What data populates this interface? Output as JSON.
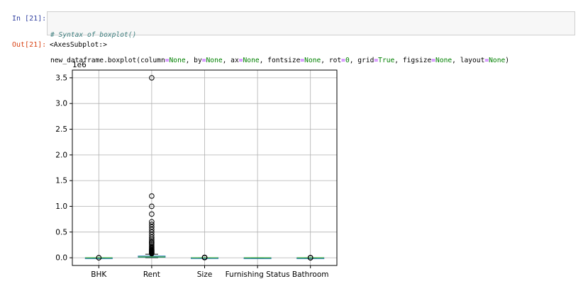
{
  "cell_in": {
    "prompt": "In [21]:",
    "comment": "# Syntax of boxplot()",
    "code_tokens": [
      {
        "t": "new_dataframe.boxplot(column",
        "c": ""
      },
      {
        "t": "=",
        "c": "op"
      },
      {
        "t": "None",
        "c": "kw"
      },
      {
        "t": ", by",
        "c": ""
      },
      {
        "t": "=",
        "c": "op"
      },
      {
        "t": "None",
        "c": "kw"
      },
      {
        "t": ", ax",
        "c": ""
      },
      {
        "t": "=",
        "c": "op"
      },
      {
        "t": "None",
        "c": "kw"
      },
      {
        "t": ", fontsize",
        "c": ""
      },
      {
        "t": "=",
        "c": "op"
      },
      {
        "t": "None",
        "c": "kw"
      },
      {
        "t": ", rot",
        "c": ""
      },
      {
        "t": "=",
        "c": "op"
      },
      {
        "t": "0",
        "c": "kw"
      },
      {
        "t": ", grid",
        "c": ""
      },
      {
        "t": "=",
        "c": "op"
      },
      {
        "t": "True",
        "c": "kw"
      },
      {
        "t": ", figsize",
        "c": ""
      },
      {
        "t": "=",
        "c": "op"
      },
      {
        "t": "None",
        "c": "kw"
      },
      {
        "t": ", layout",
        "c": ""
      },
      {
        "t": "=",
        "c": "op"
      },
      {
        "t": "None",
        "c": "kw"
      },
      {
        "t": ")",
        "c": ""
      }
    ]
  },
  "cell_out": {
    "prompt": "Out[21]:",
    "text": "<AxesSubplot:>"
  },
  "chart_data": {
    "type": "box",
    "title": "",
    "xlabel": "",
    "ylabel": "",
    "y_offset_label": "1e6",
    "ylim": [
      -0.15,
      3.65
    ],
    "yticks": [
      0.0,
      0.5,
      1.0,
      1.5,
      2.0,
      2.5,
      3.0,
      3.5
    ],
    "ytick_labels": [
      "0.0",
      "0.5",
      "1.0",
      "1.5",
      "2.0",
      "2.5",
      "3.0",
      "3.5"
    ],
    "grid": true,
    "colors": {
      "box": "#1f77b4",
      "median": "#2ca02c",
      "grid": "#b0b0b0"
    },
    "categories": [
      "BHK",
      "Rent",
      "Size",
      "Furnishing Status",
      "Bathroom"
    ],
    "boxes": [
      {
        "q1": 2e-06,
        "median": 2e-06,
        "q3": 3e-06,
        "whisker_low": 1e-06,
        "whisker_high": 4e-06,
        "fliers": [
          5e-06,
          6e-06
        ]
      },
      {
        "q1": 0.01,
        "median": 0.016,
        "q3": 0.033,
        "whisker_low": 0.0012,
        "whisker_high": 0.068,
        "fliers": [
          0.08,
          0.09,
          0.1,
          0.11,
          0.12,
          0.13,
          0.14,
          0.15,
          0.16,
          0.18,
          0.2,
          0.22,
          0.25,
          0.28,
          0.3,
          0.33,
          0.36,
          0.4,
          0.45,
          0.5,
          0.55,
          0.6,
          0.65,
          0.7,
          0.85,
          1.0,
          1.2,
          3.5
        ]
      },
      {
        "q1": 0.00055,
        "median": 0.00085,
        "q3": 0.0012,
        "whisker_low": 1e-05,
        "whisker_high": 0.0022,
        "fliers": [
          0.003,
          0.004,
          0.005,
          0.006,
          0.008
        ]
      },
      {
        "q1": 0.0,
        "median": 1e-06,
        "q3": 2e-06,
        "whisker_low": 0.0,
        "whisker_high": 2e-06,
        "fliers": []
      },
      {
        "q1": 1e-06,
        "median": 2e-06,
        "q3": 2e-06,
        "whisker_low": 1e-06,
        "whisker_high": 3e-06,
        "fliers": [
          4e-06,
          5e-06,
          6e-06,
          7e-06
        ]
      }
    ]
  }
}
